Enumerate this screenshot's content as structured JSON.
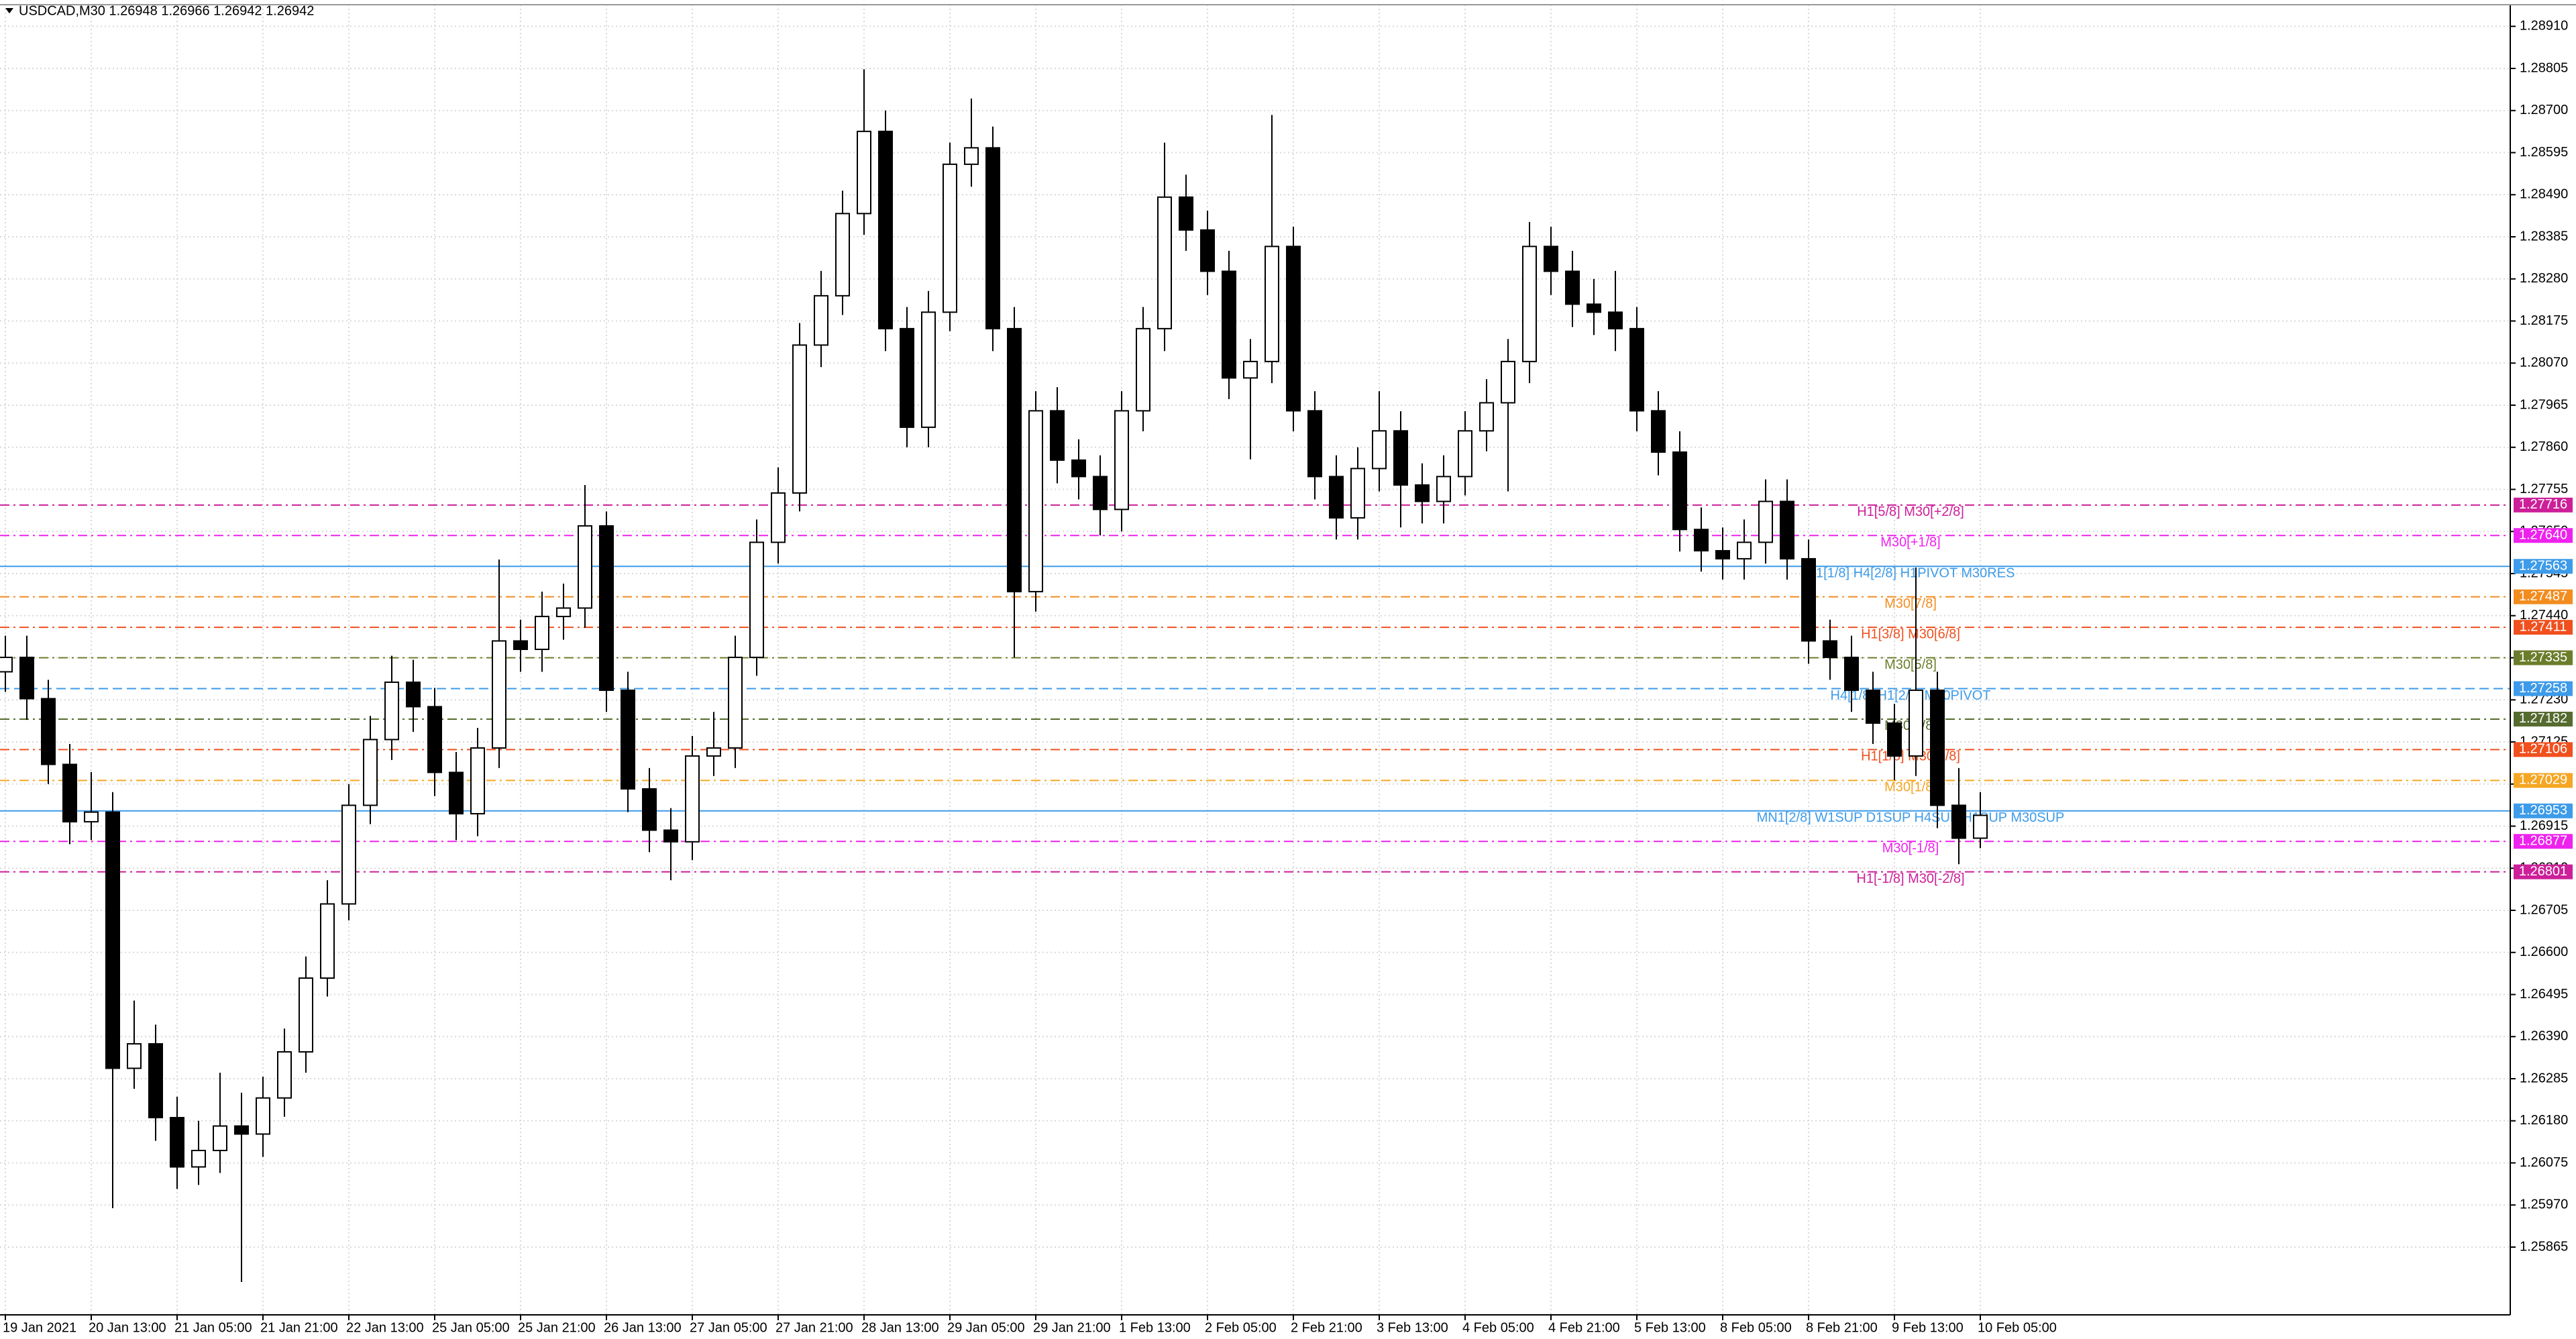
{
  "chart_data": {
    "type": "candlestick",
    "title": "USDCAD,M30  1.26948 1.26966 1.26942 1.26942",
    "categories": [
      "19 Jan 2021",
      null,
      null,
      null,
      "20 Jan 13:00",
      null,
      null,
      null,
      "21 Jan 05:00",
      null,
      null,
      null,
      "21 Jan 21:00",
      null,
      null,
      null,
      "22 Jan 13:00",
      null,
      null,
      null,
      "25 Jan 05:00",
      null,
      null,
      null,
      "25 Jan 21:00",
      null,
      null,
      null,
      "26 Jan 13:00",
      null,
      null,
      null,
      "27 Jan 05:00",
      null,
      null,
      null,
      "27 Jan 21:00",
      null,
      null,
      null,
      "28 Jan 13:00",
      null,
      null,
      null,
      "29 Jan 05:00",
      null,
      null,
      null,
      "29 Jan 21:00",
      null,
      null,
      null,
      "1 Feb 13:00",
      null,
      null,
      null,
      "2 Feb 05:00",
      null,
      null,
      null,
      "2 Feb 21:00",
      null,
      null,
      null,
      "3 Feb 13:00",
      null,
      null,
      null,
      "4 Feb 05:00",
      null,
      null,
      null,
      "4 Feb 21:00",
      null,
      null,
      null,
      "5 Feb 13:00",
      null,
      null,
      null,
      "8 Feb 05:00",
      null,
      null,
      null,
      "8 Feb 21:00",
      null,
      null,
      null,
      "9 Feb 13:00",
      null,
      null,
      null,
      "10 Feb 05:00"
    ],
    "open": [
      1.273,
      1.27336,
      1.27233,
      1.27069,
      1.26926,
      1.2695,
      1.26311,
      1.26372,
      1.26188,
      1.26065,
      1.26106,
      1.26167,
      1.26147,
      1.26237,
      1.26352,
      1.26536,
      1.26721,
      1.26967,
      1.27131,
      1.27274,
      1.27213,
      1.27049,
      1.26946,
      1.2711,
      1.27377,
      1.27356,
      1.27438,
      1.27459,
      1.27664,
      1.27254,
      1.27008,
      1.26905,
      1.26876,
      1.2709,
      1.2711,
      1.27336,
      1.27623,
      1.27746,
      1.28115,
      1.28238,
      1.28443,
      1.28648,
      1.28156,
      1.2791,
      1.28197,
      1.28566,
      1.28607,
      1.28156,
      1.275,
      1.27951,
      1.27828,
      1.27787,
      1.27705,
      1.27951,
      1.28156,
      1.28484,
      1.28402,
      1.28299,
      1.28033,
      1.28074,
      1.28361,
      1.27951,
      1.27787,
      1.27684,
      1.27807,
      1.27901,
      1.27766,
      1.27725,
      1.27787,
      1.27901,
      1.27971,
      1.28074,
      1.28361,
      1.28299,
      1.28217,
      1.28197,
      1.28156,
      1.27951,
      1.27848,
      1.27655,
      1.27602,
      1.27582,
      1.27623,
      1.27725,
      1.27582,
      1.27377,
      1.27336,
      1.27254,
      1.27172,
      1.2709,
      1.27254,
      1.26967,
      1.26885
    ],
    "high": [
      1.2739,
      1.2739,
      1.2728,
      1.2712,
      1.2705,
      1.27,
      1.2648,
      1.2642,
      1.2624,
      1.2618,
      1.263,
      1.2625,
      1.2629,
      1.2641,
      1.2659,
      1.2678,
      1.2702,
      1.2719,
      1.2734,
      1.2733,
      1.2726,
      1.271,
      1.2716,
      1.2758,
      1.2743,
      1.275,
      1.2752,
      1.27766,
      1.277,
      1.273,
      1.2706,
      1.2696,
      1.2714,
      1.272,
      1.2739,
      1.2768,
      1.2781,
      1.2817,
      1.283,
      1.285,
      1.28803,
      1.287,
      1.2821,
      1.2825,
      1.2862,
      1.2873,
      1.2866,
      1.2821,
      1.28,
      1.2801,
      1.2788,
      1.2784,
      1.28,
      1.2821,
      1.2862,
      1.2854,
      1.2845,
      1.2835,
      1.2813,
      1.28689,
      1.2841,
      1.28,
      1.2784,
      1.2786,
      1.28,
      1.2795,
      1.2782,
      1.2784,
      1.2795,
      1.2803,
      1.2813,
      1.28422,
      1.2841,
      1.2835,
      1.2828,
      1.283,
      1.2821,
      1.28,
      1.279,
      1.2771,
      1.2766,
      1.2768,
      1.2778,
      1.2778,
      1.2763,
      1.2743,
      1.2739,
      1.273,
      1.2722,
      1.2756,
      1.273,
      1.2706,
      1.27
    ],
    "low": [
      1.2725,
      1.2718,
      1.2702,
      1.2687,
      1.2688,
      1.25962,
      1.2626,
      1.2613,
      1.2601,
      1.2602,
      1.2605,
      1.25778,
      1.2609,
      1.2619,
      1.263,
      1.2649,
      1.2668,
      1.2692,
      1.2708,
      1.2715,
      1.2699,
      1.2688,
      1.2689,
      1.2706,
      1.273,
      1.273,
      1.2738,
      1.2741,
      1.272,
      1.2695,
      1.2685,
      1.2678,
      1.2683,
      1.2704,
      1.2706,
      1.2729,
      1.2757,
      1.277,
      1.2806,
      1.2819,
      1.2839,
      1.281,
      1.2786,
      1.2786,
      1.2815,
      1.2851,
      1.281,
      1.27336,
      1.2745,
      1.2777,
      1.2773,
      1.2764,
      1.2765,
      1.279,
      1.281,
      1.2835,
      1.2824,
      1.2798,
      1.2783,
      1.2802,
      1.279,
      1.2773,
      1.2763,
      1.2763,
      1.2775,
      1.2766,
      1.2767,
      1.2767,
      1.2774,
      1.2785,
      1.2775,
      1.2802,
      1.2824,
      1.2816,
      1.2814,
      1.281,
      1.279,
      1.2779,
      1.276,
      1.2755,
      1.2753,
      1.2753,
      1.2757,
      1.2753,
      1.2732,
      1.2728,
      1.272,
      1.2712,
      1.2703,
      1.2704,
      1.2691,
      1.2682,
      1.2686
    ],
    "close": [
      1.27336,
      1.27233,
      1.27069,
      1.26926,
      1.2695,
      1.26311,
      1.26372,
      1.26188,
      1.26065,
      1.26106,
      1.26167,
      1.26147,
      1.26237,
      1.26352,
      1.26536,
      1.26721,
      1.26967,
      1.27131,
      1.27274,
      1.27213,
      1.27049,
      1.26946,
      1.2711,
      1.27377,
      1.27356,
      1.27438,
      1.27459,
      1.27664,
      1.27254,
      1.27008,
      1.26905,
      1.26876,
      1.2709,
      1.2711,
      1.27336,
      1.27623,
      1.27746,
      1.28115,
      1.28238,
      1.28443,
      1.28648,
      1.28156,
      1.2791,
      1.28197,
      1.28566,
      1.28607,
      1.28156,
      1.275,
      1.27951,
      1.27828,
      1.27787,
      1.27705,
      1.27951,
      1.28156,
      1.28484,
      1.28402,
      1.28299,
      1.28033,
      1.28074,
      1.28361,
      1.27951,
      1.27787,
      1.27684,
      1.27807,
      1.27901,
      1.27766,
      1.27725,
      1.27787,
      1.27901,
      1.27971,
      1.28074,
      1.28361,
      1.28299,
      1.28217,
      1.28197,
      1.28156,
      1.27951,
      1.27848,
      1.27655,
      1.27602,
      1.27582,
      1.27623,
      1.27725,
      1.27582,
      1.27377,
      1.27336,
      1.27254,
      1.27172,
      1.2709,
      1.27254,
      1.26967,
      1.26885,
      1.26942
    ],
    "up_color": "#ffffff",
    "down_color": "#000000",
    "wick_color": "#000000",
    "ylim": [
      1.25696,
      1.28964
    ],
    "yticks": [
      {
        "value": 1.2891,
        "label": "1.28910"
      },
      1.28805,
      {
        "value": 1.287,
        "label": "1.28700"
      },
      1.28595,
      {
        "value": 1.2849,
        "label": "1.28490"
      },
      1.28385,
      {
        "value": 1.2828,
        "label": "1.28280"
      },
      1.28175,
      {
        "value": 1.2807,
        "label": "1.28070"
      },
      1.27965,
      {
        "value": 1.2786,
        "label": "1.27860"
      },
      1.27755,
      {
        "value": 1.2765,
        "label": "1.27650"
      },
      1.27545,
      {
        "value": 1.2744,
        "label": "1.27440"
      },
      1.27335,
      {
        "value": 1.2723,
        "label": "1.27230"
      },
      1.27125,
      {
        "value": 1.2702,
        "label": "1.27020"
      },
      1.26915,
      {
        "value": 1.2681,
        "label": "1.26810"
      },
      1.26705,
      {
        "value": 1.266,
        "label": "1.26600"
      },
      1.26495,
      {
        "value": 1.2639,
        "label": "1.26390"
      },
      1.26285,
      {
        "value": 1.2618,
        "label": "1.26180"
      },
      1.26075,
      {
        "value": 1.2597,
        "label": "1.25970"
      },
      1.25865
    ],
    "grid": true,
    "levels": [
      {
        "value": 1.27716,
        "text": "H1[5/8] M30[+2/8]",
        "color": "#cc1f99",
        "style": "dashdot"
      },
      {
        "value": 1.2764,
        "value_label": "1.27640",
        "text": "M30[+1/8]",
        "color": "#ee22ee",
        "style": "dashdot"
      },
      {
        "value": 1.27563,
        "text": "D1[1/8] H4[2/8] H1PIVOT M30RES",
        "color": "#3d9be9",
        "style": "solid"
      },
      {
        "value": 1.27487,
        "text": "M30[7/8]",
        "color": "#f28c1f",
        "style": "dashdot"
      },
      {
        "value": 1.27411,
        "text": "H1[3/8] M30[6/8]",
        "color": "#f0501e",
        "style": "dashdot"
      },
      {
        "value": 1.27335,
        "text": "M30[5/8]",
        "color": "#6b7d2a",
        "style": "dashdot"
      },
      {
        "value": 1.27258,
        "text": "H4[1/8] H1[2/8] M30PIVOT",
        "color": "#3d9be9",
        "style": "dash"
      },
      {
        "value": 1.27182,
        "text": "M30[3/8]",
        "color": "#556b2f",
        "style": "dashdot"
      },
      {
        "value": 1.27106,
        "text": "H1[1/8] M30[2/8]",
        "color": "#f0501e",
        "style": "dashdot"
      },
      {
        "value": 1.27029,
        "text": "M30[1/8]",
        "color": "#f5a623",
        "style": "dashdot"
      },
      {
        "value": 1.26953,
        "text": "MN1[2/8] W1SUP D1SUP H4SUP H1SUP M30SUP",
        "color": "#3d9be9",
        "style": "solid"
      },
      {
        "value": 1.26877,
        "text": "M30[-1/8]",
        "color": "#ee22ee",
        "style": "dashdot"
      },
      {
        "value": 1.26801,
        "text": "H1[-1/8] M30[-2/8]",
        "color": "#cc1f99",
        "style": "dashdot"
      }
    ]
  }
}
